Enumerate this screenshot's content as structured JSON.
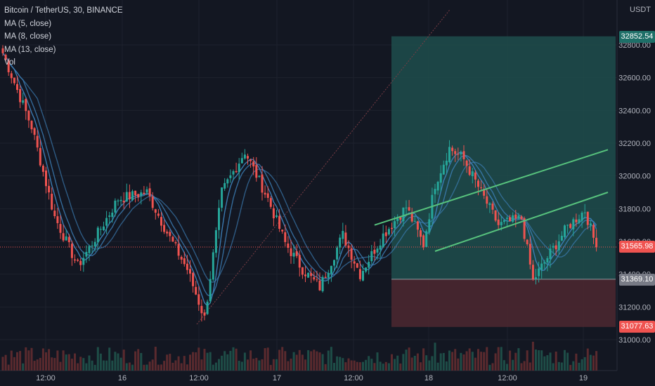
{
  "legend": {
    "symbol": "Bitcoin / TetherUS, 30, BINANCE",
    "ma5": "MA (5, close)",
    "ma8": "MA (8, close)",
    "ma13": "MA (13, close)",
    "vol": "Vol"
  },
  "axis": {
    "unit": "USDT",
    "y_ticks": [
      "32800.00",
      "32600.00",
      "32400.00",
      "32200.00",
      "32000.00",
      "31800.00",
      "31600.00",
      "31400.00",
      "31200.00",
      "31000.00"
    ],
    "x_ticks": [
      "12:00",
      "16",
      "12:00",
      "17",
      "12:00",
      "18",
      "12:00",
      "19"
    ]
  },
  "price_tags": {
    "target": "32852.54",
    "current": "31565.98",
    "entry": "31369.10",
    "stop": "31077.63"
  },
  "colors": {
    "background": "#131722",
    "up": "#26a69a",
    "down": "#ef5350",
    "ma": "#3d7fb8",
    "channel": "#57c27d",
    "profit_zone": "#1f4e4c",
    "loss_zone": "#4a2730"
  },
  "chart_data": {
    "type": "candlestick",
    "title": "Bitcoin / TetherUS, 30, BINANCE",
    "ylim": [
      30900,
      33000
    ],
    "indicators": [
      "MA (5, close)",
      "MA (8, close)",
      "MA (13, close)",
      "Vol"
    ],
    "anchors": [
      {
        "bar": 0,
        "close": 32750
      },
      {
        "bar": 10,
        "close": 32300
      },
      {
        "bar": 18,
        "close": 31750
      },
      {
        "bar": 26,
        "close": 31450
      },
      {
        "bar": 30,
        "close": 31560
      },
      {
        "bar": 40,
        "close": 31860
      },
      {
        "bar": 50,
        "close": 31900
      },
      {
        "bar": 58,
        "close": 31620
      },
      {
        "bar": 64,
        "close": 31430
      },
      {
        "bar": 70,
        "close": 31130
      },
      {
        "bar": 76,
        "close": 31900
      },
      {
        "bar": 84,
        "close": 32150
      },
      {
        "bar": 92,
        "close": 31860
      },
      {
        "bar": 98,
        "close": 31590
      },
      {
        "bar": 104,
        "close": 31430
      },
      {
        "bar": 110,
        "close": 31320
      },
      {
        "bar": 118,
        "close": 31640
      },
      {
        "bar": 124,
        "close": 31400
      },
      {
        "bar": 132,
        "close": 31640
      },
      {
        "bar": 140,
        "close": 31810
      },
      {
        "bar": 146,
        "close": 31580
      },
      {
        "bar": 150,
        "close": 31950
      },
      {
        "bar": 155,
        "close": 32170
      },
      {
        "bar": 160,
        "close": 32100
      },
      {
        "bar": 166,
        "close": 31900
      },
      {
        "bar": 172,
        "close": 31700
      },
      {
        "bar": 180,
        "close": 31740
      },
      {
        "bar": 184,
        "close": 31360
      },
      {
        "bar": 190,
        "close": 31530
      },
      {
        "bar": 196,
        "close": 31690
      },
      {
        "bar": 202,
        "close": 31790
      },
      {
        "bar": 206,
        "close": 31565
      }
    ],
    "position": {
      "target": 32852.54,
      "entry": 31369.1,
      "stop": 31077.63
    },
    "channel_lines": [
      {
        "from": [
          129,
          31700
        ],
        "to": [
          210,
          32160
        ]
      },
      {
        "from": [
          150,
          31540
        ],
        "to": [
          210,
          31900
        ]
      }
    ]
  }
}
